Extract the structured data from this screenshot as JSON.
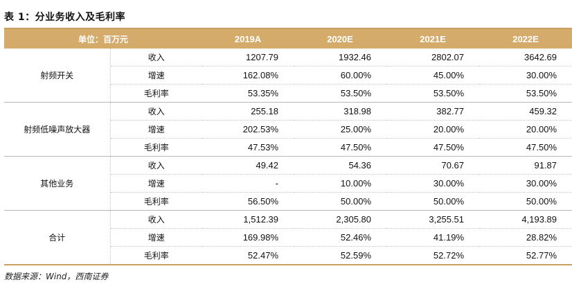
{
  "title": "表 1：分业务收入及毛利率",
  "header": {
    "unit": "单位：百万元",
    "years": [
      "2019A",
      "2020E",
      "2021E",
      "2022E"
    ]
  },
  "groups": [
    {
      "name": "射频开关",
      "rows": [
        {
          "metric": "收入",
          "values": [
            "1207.79",
            "1932.46",
            "2802.07",
            "3642.69"
          ]
        },
        {
          "metric": "增速",
          "values": [
            "162.08%",
            "60.00%",
            "45.00%",
            "30.00%"
          ]
        },
        {
          "metric": "毛利率",
          "values": [
            "53.35%",
            "53.50%",
            "53.50%",
            "53.50%"
          ]
        }
      ]
    },
    {
      "name": "射频低噪声放大器",
      "rows": [
        {
          "metric": "收入",
          "values": [
            "255.18",
            "318.98",
            "382.77",
            "459.32"
          ]
        },
        {
          "metric": "增速",
          "values": [
            "202.53%",
            "25.00%",
            "20.00%",
            "20.00%"
          ]
        },
        {
          "metric": "毛利率",
          "values": [
            "47.53%",
            "47.50%",
            "47.50%",
            "47.50%"
          ]
        }
      ]
    },
    {
      "name": "其他业务",
      "rows": [
        {
          "metric": "收入",
          "values": [
            "49.42",
            "54.36",
            "70.67",
            "91.87"
          ]
        },
        {
          "metric": "增速",
          "values": [
            "-",
            "10.00%",
            "30.00%",
            "30.00%"
          ]
        },
        {
          "metric": "毛利率",
          "values": [
            "56.50%",
            "50.00%",
            "50.00%",
            "50.00%"
          ]
        }
      ]
    },
    {
      "name": "合计",
      "rows": [
        {
          "metric": "收入",
          "values": [
            "1,512.39",
            "2,305.80",
            "3,255.51",
            "4,193.89"
          ]
        },
        {
          "metric": "增速",
          "values": [
            "169.98%",
            "52.46%",
            "41.19%",
            "28.82%"
          ]
        },
        {
          "metric": "毛利率",
          "values": [
            "52.47%",
            "52.59%",
            "52.72%",
            "52.77%"
          ]
        }
      ]
    }
  ],
  "source": "数据来源：Wind，西南证券",
  "colors": {
    "header_bg": "#d5ab6c",
    "rule": "#c8a063"
  }
}
